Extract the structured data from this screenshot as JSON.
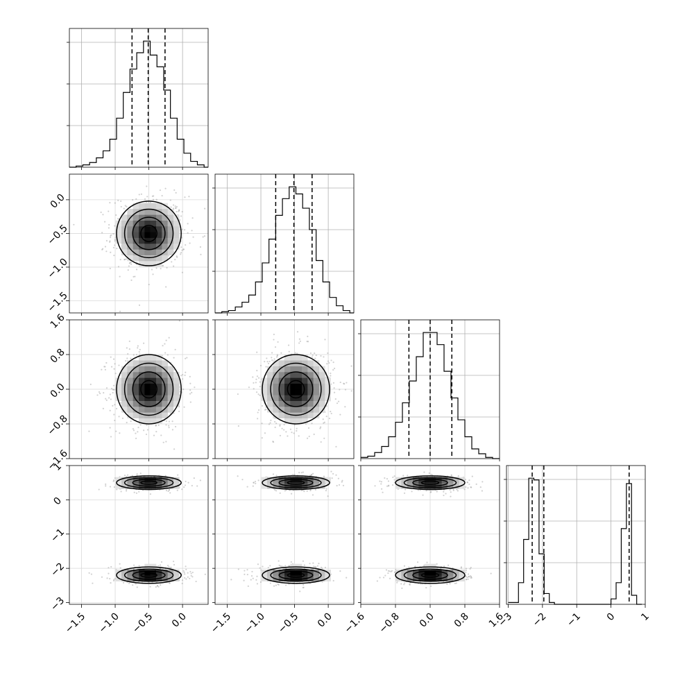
{
  "chart_data": {
    "type": "corner",
    "grid": true,
    "n_params": 4,
    "params": [
      {
        "range": [
          -1.68,
          0.38
        ],
        "ticks": [
          -1.5,
          -1.0,
          -0.5,
          0.0
        ],
        "tick_labels": [
          "−1.5",
          "−1.0",
          "−0.5",
          "0.0"
        ]
      },
      {
        "range": [
          -1.68,
          0.38
        ],
        "ticks": [
          -1.5,
          -1.0,
          -0.5,
          0.0
        ],
        "tick_labels": [
          "−1.5",
          "−1.0",
          "−0.5",
          "0.0"
        ]
      },
      {
        "range": [
          -1.6,
          1.6
        ],
        "ticks": [
          -1.6,
          -0.8,
          0.0,
          0.8,
          1.6
        ],
        "tick_labels": [
          "−1.6",
          "−0.8",
          "0.0",
          "0.8",
          "1.6"
        ]
      },
      {
        "range": [
          -3.05,
          1.0
        ],
        "ticks": [
          -3,
          -2,
          -1,
          0,
          1
        ],
        "tick_labels": [
          "−3",
          "−2",
          "−1",
          "0",
          "1"
        ]
      }
    ],
    "diagonal_histograms": [
      {
        "param": 0,
        "quantile_lines": [
          -0.75,
          -0.51,
          -0.26
        ],
        "bin_edges": [
          -1.68,
          -1.58,
          -1.48,
          -1.38,
          -1.28,
          -1.18,
          -1.08,
          -0.98,
          -0.88,
          -0.78,
          -0.68,
          -0.58,
          -0.48,
          -0.38,
          -0.28,
          -0.18,
          -0.08,
          0.02,
          0.12,
          0.22,
          0.32,
          0.38
        ],
        "counts": [
          0,
          1,
          2,
          4,
          8,
          14,
          24,
          42,
          64,
          84,
          98,
          108,
          96,
          86,
          66,
          42,
          24,
          12,
          5,
          2,
          0
        ]
      },
      {
        "param": 1,
        "quantile_lines": [
          -0.78,
          -0.51,
          -0.24
        ],
        "bin_edges": [
          -1.68,
          -1.58,
          -1.48,
          -1.38,
          -1.28,
          -1.18,
          -1.08,
          -0.98,
          -0.88,
          -0.78,
          -0.68,
          -0.58,
          -0.48,
          -0.38,
          -0.28,
          -0.18,
          -0.08,
          0.02,
          0.12,
          0.22,
          0.32,
          0.38
        ],
        "counts": [
          0,
          1,
          2,
          5,
          9,
          15,
          26,
          42,
          62,
          82,
          96,
          106,
          100,
          88,
          70,
          44,
          26,
          13,
          6,
          2,
          0
        ]
      },
      {
        "param": 2,
        "quantile_lines": [
          -0.49,
          0.0,
          0.5
        ],
        "bin_edges": [
          -1.6,
          -1.44,
          -1.28,
          -1.12,
          -0.96,
          -0.8,
          -0.64,
          -0.48,
          -0.32,
          -0.16,
          0.0,
          0.16,
          0.32,
          0.48,
          0.64,
          0.8,
          0.96,
          1.12,
          1.28,
          1.44,
          1.6
        ],
        "counts": [
          1,
          2,
          5,
          10,
          18,
          30,
          46,
          64,
          84,
          104,
          104,
          94,
          72,
          50,
          32,
          18,
          8,
          4,
          1,
          0
        ]
      },
      {
        "param": 3,
        "quantile_lines": [
          -2.3,
          -1.96,
          0.53
        ],
        "bin_edges": [
          -3.0,
          -2.85,
          -2.7,
          -2.55,
          -2.4,
          -2.25,
          -2.1,
          -1.95,
          -1.8,
          -1.65,
          -1.5,
          -1.35,
          -1.2,
          -1.05,
          -0.9,
          -0.75,
          -0.6,
          -0.45,
          -0.3,
          -0.15,
          0.0,
          0.15,
          0.3,
          0.45,
          0.6,
          0.75,
          0.9
        ],
        "counts": [
          1,
          1,
          12,
          36,
          70,
          69,
          28,
          6,
          1,
          0,
          0,
          0,
          0,
          0,
          0,
          0,
          0,
          0,
          0,
          0,
          3,
          12,
          42,
          67,
          5,
          0
        ]
      }
    ],
    "pair_plots": [
      {
        "x": 0,
        "y": 1,
        "blobs": [
          {
            "center": [
              -0.5,
              -0.5
            ],
            "sigma": [
              0.24,
              0.24
            ],
            "weight": 1.0
          }
        ]
      },
      {
        "x": 0,
        "y": 2,
        "blobs": [
          {
            "center": [
              -0.5,
              0.0
            ],
            "sigma": [
              0.24,
              0.4
            ],
            "weight": 1.0
          }
        ]
      },
      {
        "x": 1,
        "y": 2,
        "blobs": [
          {
            "center": [
              -0.48,
              0.0
            ],
            "sigma": [
              0.25,
              0.4
            ],
            "weight": 1.0
          }
        ]
      },
      {
        "x": 0,
        "y": 3,
        "blobs": [
          {
            "center": [
              -0.5,
              0.5
            ],
            "sigma": [
              0.24,
              0.1
            ],
            "weight": 0.5
          },
          {
            "center": [
              -0.5,
              -2.2
            ],
            "sigma": [
              0.24,
              0.12
            ],
            "weight": 0.5
          }
        ]
      },
      {
        "x": 1,
        "y": 3,
        "blobs": [
          {
            "center": [
              -0.48,
              0.5
            ],
            "sigma": [
              0.25,
              0.1
            ],
            "weight": 0.5
          },
          {
            "center": [
              -0.48,
              -2.2
            ],
            "sigma": [
              0.25,
              0.12
            ],
            "weight": 0.5
          }
        ]
      },
      {
        "x": 2,
        "y": 3,
        "blobs": [
          {
            "center": [
              0.0,
              0.5
            ],
            "sigma": [
              0.4,
              0.1
            ],
            "weight": 0.5
          },
          {
            "center": [
              0.0,
              -2.2
            ],
            "sigma": [
              0.4,
              0.12
            ],
            "weight": 0.5
          }
        ]
      }
    ]
  }
}
